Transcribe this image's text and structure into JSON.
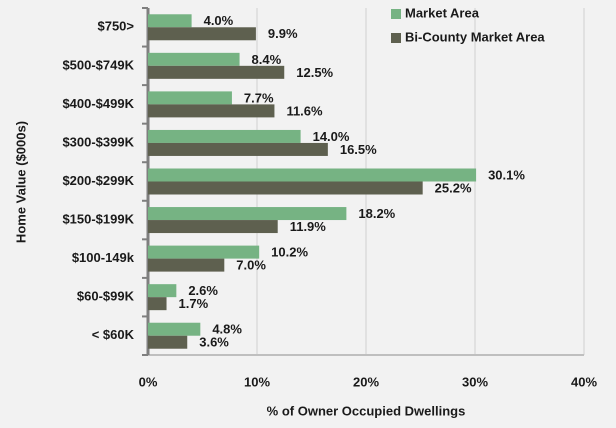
{
  "chart_data": {
    "type": "barh",
    "xlabel": "% of Owner Occupied Dwellings",
    "ylabel": "Home Value ($000s)",
    "categories": [
      "$750>",
      "$500-$749K",
      "$400-$499K",
      "$300-$399K",
      "$200-$299K",
      "$150-$199K",
      "$100-149k",
      "$60-$99K",
      "< $60K"
    ],
    "series": [
      {
        "name": "Market Area",
        "color": "#76b383",
        "values": [
          4.0,
          8.4,
          7.7,
          14.0,
          30.1,
          18.2,
          10.2,
          2.6,
          4.8
        ],
        "value_labels": [
          "4.0%",
          "8.4%",
          "7.7%",
          "14.0%",
          "30.1%",
          "18.2%",
          "10.2%",
          "2.6%",
          "4.8%"
        ]
      },
      {
        "name": "Bi-County Market Area",
        "color": "#5e604f",
        "values": [
          9.9,
          12.5,
          11.6,
          16.5,
          25.2,
          11.9,
          7.0,
          1.7,
          3.6
        ],
        "value_labels": [
          "9.9%",
          "12.5%",
          "11.6%",
          "16.5%",
          "25.2%",
          "11.9%",
          "7.0%",
          "1.7%",
          "3.6%"
        ]
      }
    ],
    "xlim": [
      0,
      40
    ],
    "xticks": [
      {
        "value": 0,
        "label": "0%"
      },
      {
        "value": 10,
        "label": "10%"
      },
      {
        "value": 20,
        "label": "20%"
      },
      {
        "value": 30,
        "label": "30%"
      },
      {
        "value": 40,
        "label": "40%"
      }
    ],
    "grid": true,
    "legend": "upper right"
  }
}
